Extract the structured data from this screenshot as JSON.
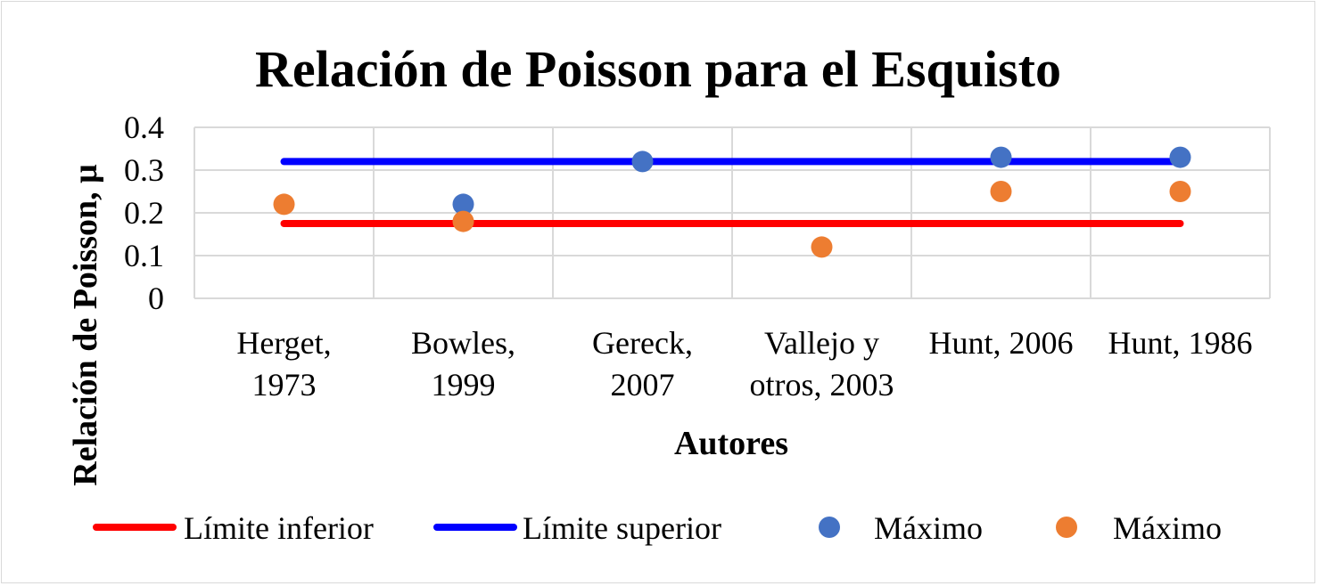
{
  "chart_data": {
    "type": "scatter",
    "title": "Relación de Poisson para el Esquisto",
    "xlabel": "Autores",
    "ylabel": "Relación de Poisson, μ",
    "categories": [
      [
        "Herget,",
        "1973"
      ],
      [
        "Bowles,",
        "1999"
      ],
      [
        "Gereck,",
        "2007"
      ],
      [
        "Vallejo y",
        "otros, 2003"
      ],
      [
        "Hunt, 2006"
      ],
      [
        "Hunt, 1986"
      ]
    ],
    "ylim": [
      0,
      0.4
    ],
    "yticks": [
      "0",
      "0.1",
      "0.2",
      "0.3",
      "0.4"
    ],
    "grid": true,
    "legend_position": "bottom",
    "series": [
      {
        "name": "Límite  inferior",
        "kind": "line",
        "color": "#ff0000",
        "values": [
          0.175,
          0.175,
          0.175,
          0.175,
          0.175,
          0.175
        ]
      },
      {
        "name": "Límite  superior",
        "kind": "line",
        "color": "#0000ff",
        "values": [
          0.32,
          0.32,
          0.32,
          0.32,
          0.32,
          0.32
        ]
      },
      {
        "name": "Máximo",
        "kind": "marker",
        "color": "#4472c4",
        "values": [
          null,
          0.22,
          0.32,
          null,
          0.33,
          0.33
        ]
      },
      {
        "name": "Máximo",
        "kind": "marker",
        "color": "#ed7d31",
        "values": [
          0.22,
          0.18,
          null,
          0.12,
          0.25,
          0.25
        ]
      }
    ]
  }
}
